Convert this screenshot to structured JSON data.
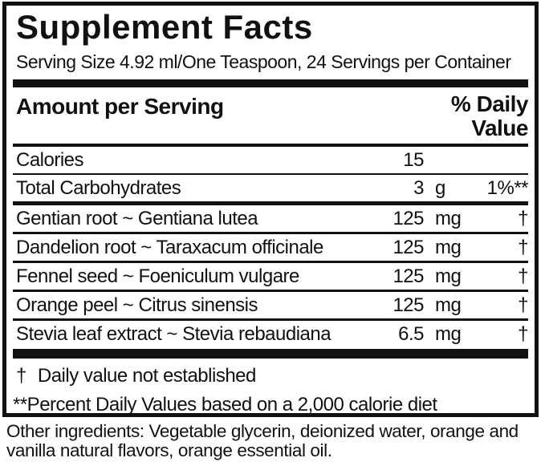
{
  "panel": {
    "title": "Supplement Facts",
    "serving_info": "Serving Size 4.92 ml/One Teaspoon, 24 Servings per Container",
    "amount_header": "Amount per Serving",
    "daily_value_header": "% Daily Value",
    "rows": [
      {
        "name": "Calories",
        "amount": "15",
        "unit": "",
        "dv": ""
      },
      {
        "name": "Total Carbohydrates",
        "amount": "3",
        "unit": "g",
        "dv": "1%**"
      },
      {
        "name": "Gentian root ~ Gentiana lutea",
        "amount": "125",
        "unit": "mg",
        "dv": "†"
      },
      {
        "name": "Dandelion root ~ Taraxacum officinale",
        "amount": "125",
        "unit": "mg",
        "dv": "†"
      },
      {
        "name": "Fennel seed ~ Foeniculum vulgare",
        "amount": "125",
        "unit": "mg",
        "dv": "†"
      },
      {
        "name": "Orange peel ~ Citrus sinensis",
        "amount": "125",
        "unit": "mg",
        "dv": "†"
      },
      {
        "name": "Stevia leaf extract ~ Stevia rebaudiana",
        "amount": "6.5",
        "unit": "mg",
        "dv": "†"
      }
    ],
    "footnotes": {
      "dagger_symbol": "†",
      "dagger_text": "Daily value not established",
      "percent_text": "**Percent Daily Values based on a 2,000 calorie diet"
    }
  },
  "other_ingredients": "Other ingredients: Vegetable glycerin, deionized water, orange and vanilla natural flavors, orange essential oil.",
  "colors": {
    "ink": "#111111",
    "background": "#ffffff"
  }
}
